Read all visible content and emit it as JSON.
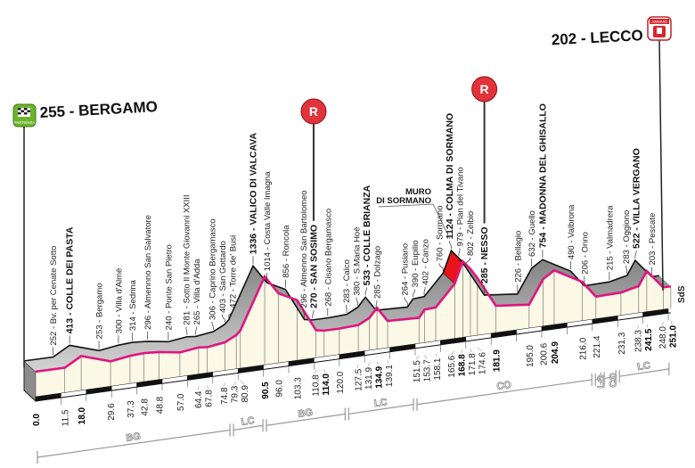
{
  "chart_data": {
    "type": "area",
    "title": "",
    "xlabel": "",
    "ylabel": "",
    "x_unit": "km",
    "y_unit": "m",
    "xlim": [
      0,
      251.0
    ],
    "scale_ticks": [
      10,
      20,
      30,
      40,
      50,
      60,
      70,
      80,
      90,
      100,
      110,
      120,
      130,
      140,
      150,
      160,
      170,
      180,
      190,
      200,
      210,
      220,
      230,
      240,
      250
    ],
    "points": [
      {
        "km": 0.0,
        "km_label": "0.0",
        "elev": 255,
        "name": "",
        "bold": true
      },
      {
        "km": 11.5,
        "km_label": "11.5",
        "elev": 252,
        "name": "Bv. per Cenate Sotto",
        "bold": false
      },
      {
        "km": 18.0,
        "km_label": "18.0",
        "elev": 413,
        "name": "COLLE DEI PASTA",
        "bold": true
      },
      {
        "km": 29.6,
        "km_label": "29.6",
        "elev": 253,
        "name": "Bergamo",
        "bold": false
      },
      {
        "km": 37.3,
        "km_label": "37.3",
        "elev": 300,
        "name": "Villa d'Almè",
        "bold": false
      },
      {
        "km": 42.8,
        "km_label": "42.8",
        "elev": 314,
        "name": "Sedrina",
        "bold": false
      },
      {
        "km": 48.8,
        "km_label": "48.8",
        "elev": 296,
        "name": "Almennno San Salvatore",
        "bold": false
      },
      {
        "km": 57.0,
        "km_label": "57.0",
        "elev": 240,
        "name": "Ponte San Pietro",
        "bold": false
      },
      {
        "km": 64.4,
        "km_label": "64.4",
        "elev": 281,
        "name": "Sotto Il Monte Giovanni XXIII",
        "bold": false
      },
      {
        "km": 67.8,
        "km_label": "67.8",
        "elev": 265,
        "name": "Villa d'Adda",
        "bold": false
      },
      {
        "km": 74.8,
        "km_label": "74.8",
        "elev": 306,
        "name": "Caprino Bergamasco",
        "bold": false
      },
      {
        "km": 79.3,
        "km_label": "79.3",
        "elev": 403,
        "name": "San Gottardo",
        "bold": false
      },
      {
        "km": 80.9,
        "km_label": "80.9",
        "elev": 472,
        "name": "Torre de' Busi",
        "bold": false
      },
      {
        "km": 90.5,
        "km_label": "90.5",
        "elev": 1336,
        "name": "VALICO DI VALCAVA",
        "bold": true
      },
      {
        "km": 96.0,
        "km_label": "96.0",
        "elev": 1014,
        "name": "Costa Valle Imagna",
        "bold": false
      },
      {
        "km": 103.3,
        "km_label": "103.3",
        "elev": 856,
        "name": "Roncola",
        "bold": false
      },
      {
        "km": 110.8,
        "km_label": "110.8",
        "elev": 296,
        "name": "Almenno San Bartolomeo",
        "bold": false
      },
      {
        "km": 114.0,
        "km_label": "114.0",
        "elev": 270,
        "name": "SAN SOSIMO",
        "bold": true
      },
      {
        "km": 120.0,
        "km_label": "120.0",
        "elev": 268,
        "name": "Cisano Bergamasco",
        "bold": false
      },
      {
        "km": 127.5,
        "km_label": "127.5",
        "elev": 283,
        "name": "Calco",
        "bold": false
      },
      {
        "km": 131.9,
        "km_label": "131.9",
        "elev": 380,
        "name": "S.Maria Hoè",
        "bold": false
      },
      {
        "km": 134.9,
        "km_label": "134.9",
        "elev": 533,
        "name": "COLLE BRIANZA",
        "bold": true
      },
      {
        "km": 139.1,
        "km_label": "139.1",
        "elev": 285,
        "name": "Dolzago",
        "bold": false
      },
      {
        "km": 151.5,
        "km_label": "151.5",
        "elev": 264,
        "name": "Pusiano",
        "bold": false
      },
      {
        "km": 153.7,
        "km_label": "153.7",
        "elev": 390,
        "name": "Eupilio",
        "bold": false
      },
      {
        "km": 158.1,
        "km_label": "158.1",
        "elev": 402,
        "name": "Canzo",
        "bold": false
      },
      {
        "km": 165.6,
        "km_label": "165.6",
        "elev": 760,
        "name": "Sormano",
        "bold": false
      },
      {
        "km": 168.8,
        "km_label": "168.8",
        "elev": 1124,
        "name": "COLMA DI SORMANO",
        "bold": true
      },
      {
        "km": 171.8,
        "km_label": "171.8",
        "elev": 979,
        "name": "Pian del Tivano",
        "bold": false
      },
      {
        "km": 174.6,
        "km_label": "174.6",
        "elev": 802,
        "name": "Zelbio",
        "bold": false
      },
      {
        "km": 181.9,
        "km_label": "181.9",
        "elev": 285,
        "name": "NESSO",
        "bold": true
      },
      {
        "km": 195.0,
        "km_label": "195.0",
        "elev": 226,
        "name": "Bellagio",
        "bold": false
      },
      {
        "km": 200.6,
        "km_label": "200.6",
        "elev": 632,
        "name": "Guello",
        "bold": false
      },
      {
        "km": 204.9,
        "km_label": "204.9",
        "elev": 754,
        "name": "MADONNA DEL GHISALLO",
        "bold": true
      },
      {
        "km": 216.0,
        "km_label": "216.0",
        "elev": 490,
        "name": "Valbrona",
        "bold": false
      },
      {
        "km": 221.4,
        "km_label": "221.4",
        "elev": 206,
        "name": "Onno",
        "bold": false
      },
      {
        "km": 231.3,
        "km_label": "231.3",
        "elev": 215,
        "name": "Valmadrera",
        "bold": false
      },
      {
        "km": 238.3,
        "km_label": "238.3",
        "elev": 283,
        "name": "Oggiono",
        "bold": false
      },
      {
        "km": 241.5,
        "km_label": "241.5",
        "elev": 522,
        "name": "VILLA VERGANO",
        "bold": true
      },
      {
        "km": 248.0,
        "km_label": "248.0",
        "elev": 203,
        "name": "Pescate",
        "bold": false
      },
      {
        "km": 251.0,
        "km_label": "251.0",
        "elev": 202,
        "name": "",
        "bold": true
      }
    ],
    "provinces": [
      {
        "code": "BG",
        "from": 0,
        "to": 77.5
      },
      {
        "code": "LC",
        "from": 77.5,
        "to": 90.5
      },
      {
        "code": "BG",
        "from": 90.5,
        "to": 123
      },
      {
        "code": "LC",
        "from": 123,
        "to": 150
      },
      {
        "code": "CO",
        "from": 150,
        "to": 220.5
      },
      {
        "code": "LC",
        "from": 220.5,
        "to": 224
      },
      {
        "code": "CO",
        "from": 224,
        "to": 230
      },
      {
        "code": "LC",
        "from": 230,
        "to": 251
      }
    ],
    "feed_zones_km": [
      114.0,
      181.9
    ],
    "steep_section": {
      "label_line1": "MURO",
      "label_line2": "DI SORMANO",
      "from_km": 165.6,
      "to_km": 168.8
    }
  },
  "start": {
    "label": "255 - BERGAMO",
    "icon_text": "PARTENZA"
  },
  "finish": {
    "label": "202 - LECCO",
    "icon_text": "ARRIVO"
  },
  "feed_marker_text": "R",
  "sds_text": "SdS",
  "colors": {
    "profile_line": "#e0157f",
    "front_face": "#fbf8e6",
    "top_band": "#a0a0a0",
    "feed_marker": "#e2333b",
    "steep": "#e8141b",
    "start_icon": "#6cb52d",
    "finish_icon": "#d8262d"
  }
}
